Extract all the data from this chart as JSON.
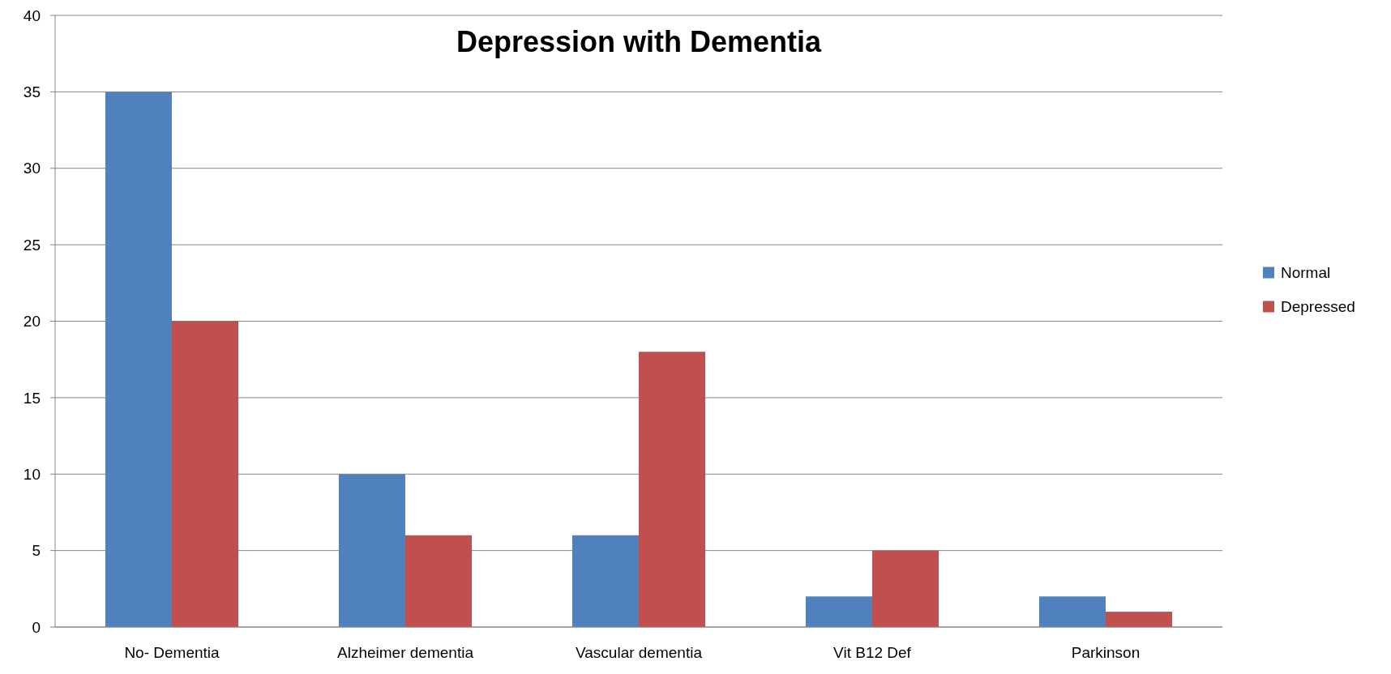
{
  "chart_data": {
    "type": "bar",
    "title": "Depression with Dementia",
    "categories": [
      "No- Dementia",
      "Alzheimer dementia",
      "Vascular dementia",
      "Vit B12 Def",
      "Parkinson"
    ],
    "series": [
      {
        "name": "Normal",
        "color": "#4f81bd",
        "values": [
          35,
          10,
          6,
          2,
          2
        ]
      },
      {
        "name": "Depressed",
        "color": "#c0504d",
        "values": [
          20,
          6,
          18,
          5,
          1
        ]
      }
    ],
    "ylim": [
      0,
      40
    ],
    "yticks": [
      0,
      5,
      10,
      15,
      20,
      25,
      30,
      35,
      40
    ],
    "grid": "y",
    "legend": "right"
  }
}
